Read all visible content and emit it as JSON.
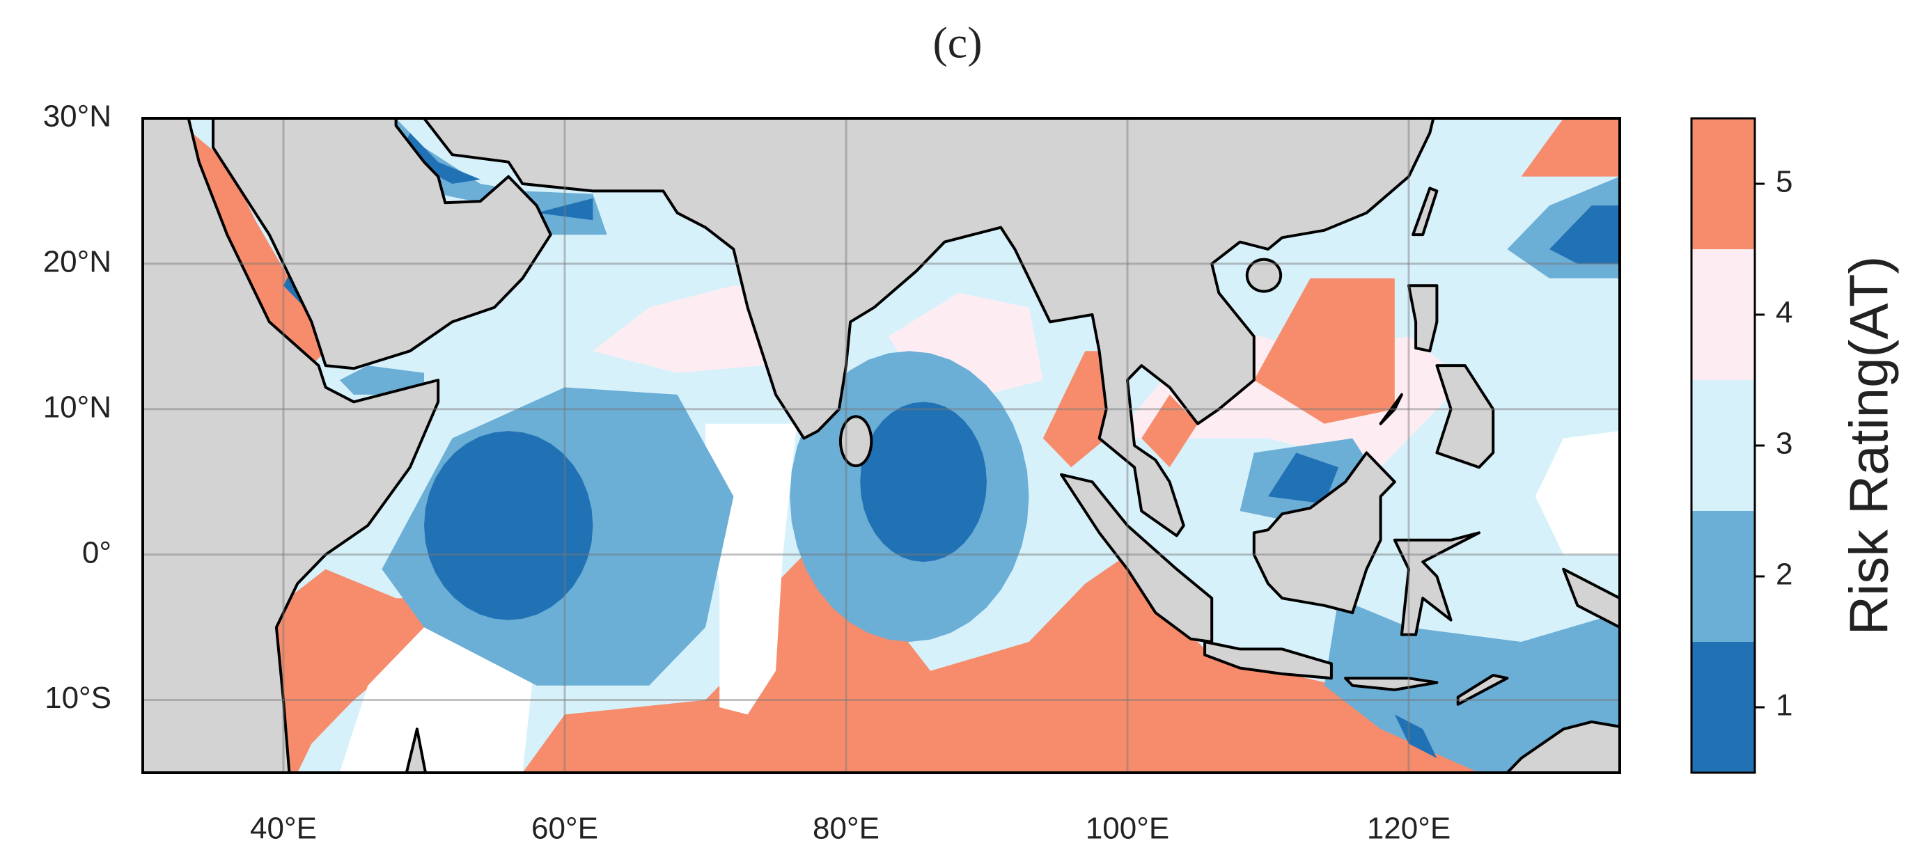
{
  "title": "(c)",
  "map": {
    "xlim": [
      30,
      135
    ],
    "ylim": [
      -15,
      30
    ],
    "xticks": [
      {
        "value": 40,
        "label": "40°E"
      },
      {
        "value": 60,
        "label": "60°E"
      },
      {
        "value": 80,
        "label": "80°E"
      },
      {
        "value": 100,
        "label": "100°E"
      },
      {
        "value": 120,
        "label": "120°E"
      }
    ],
    "yticks": [
      {
        "value": 30,
        "label": "30°N"
      },
      {
        "value": 20,
        "label": "20°N"
      },
      {
        "value": 10,
        "label": "10°N"
      },
      {
        "value": 0,
        "label": "0°"
      },
      {
        "value": -10,
        "label": "10°S"
      }
    ],
    "grid": true
  },
  "colorbar": {
    "label": "Risk Rating(AT)",
    "clim": [
      0.5,
      5.5
    ],
    "ticks": [
      1,
      2,
      3,
      4,
      5
    ],
    "colors": [
      "#2171b5",
      "#6baed6",
      "#d7f1fb",
      "#fdedf2",
      "#f68c6c"
    ]
  }
}
